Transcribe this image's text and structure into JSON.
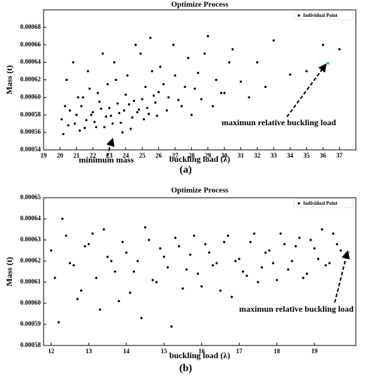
{
  "chart_data": [
    {
      "type": "scatter",
      "title": "Optimize Process",
      "x_label": "buckling load (λ)",
      "y_label": "Mass (t)",
      "caption": "(a)",
      "annotations": [
        "maximun relative buckling load",
        "minimum mass"
      ],
      "xlim": [
        19,
        38
      ],
      "xticks": [
        19,
        20,
        21,
        22,
        23,
        24,
        25,
        26,
        27,
        28,
        29,
        30,
        31,
        32,
        33,
        34,
        35,
        36,
        37
      ],
      "ylim": [
        0.00054,
        0.0007
      ],
      "yticks": [
        0.00054,
        0.00056,
        0.00058,
        {
          "value": 0.0006,
          "label": "0.00060"
        },
        0.00062,
        0.00064,
        0.00066,
        0.00068
      ],
      "legend": "top-right",
      "series": [
        {
          "name": "Individual Point",
          "color": "#000000",
          "x": [
            20.1,
            20.3,
            20.5,
            20.8,
            21.0,
            21.2,
            21.4,
            21.6,
            21.8,
            22.0,
            22.2,
            22.4,
            22.6,
            22.8,
            23.0,
            23.2,
            23.4,
            23.6,
            23.8,
            24.0,
            24.2,
            24.4,
            24.6,
            24.8,
            25.0,
            25.2,
            25.4,
            25.6,
            25.8,
            26.0,
            26.3,
            26.6,
            27.0,
            27.4,
            27.8,
            28.2,
            28.6,
            29.0,
            29.5,
            30.0,
            30.5,
            31.0,
            31.5,
            32.0,
            32.5,
            33.0,
            34.0,
            35.0,
            36.0,
            37.0,
            20.2,
            20.4,
            20.6,
            20.9,
            21.1,
            21.3,
            21.5,
            21.7,
            21.9,
            22.1,
            22.3,
            22.5,
            22.7,
            22.9,
            23.1,
            23.3,
            23.5,
            23.7,
            23.9,
            24.1,
            24.3,
            24.5,
            24.7,
            24.9,
            25.1,
            25.3,
            25.5,
            25.7,
            25.9,
            26.1,
            26.5,
            26.9,
            27.2,
            27.6,
            28.0,
            28.4,
            28.8,
            29.3,
            29.8,
            30.3
          ],
          "y": [
            0.000575,
            0.00059,
            0.000568,
            0.00064,
            0.00058,
            0.000562,
            0.0006,
            0.000574,
            0.00061,
            0.000583,
            0.000566,
            0.000595,
            0.00065,
            0.000578,
            0.000588,
            0.00057,
            0.00062,
            0.000582,
            0.00056,
            0.000603,
            0.000592,
            0.000577,
            0.00066,
            0.000586,
            0.000598,
            0.000612,
            0.000581,
            0.00063,
            0.000594,
            0.000606,
            0.000615,
            0.0006,
            0.000625,
            0.00059,
            0.000645,
            0.00061,
            0.000598,
            0.00067,
            0.00062,
            0.000605,
            0.000655,
            0.000618,
            0.0006,
            0.00064,
            0.000612,
            0.000665,
            0.000626,
            0.00063,
            0.00066,
            0.000655,
            0.000558,
            0.00062,
            0.000585,
            0.00057,
            0.0006,
            0.00059,
            0.000565,
            0.00063,
            0.00058,
            0.000572,
            0.000605,
            0.000587,
            0.000566,
            0.000615,
            0.000579,
            0.00064,
            0.000593,
            0.000571,
            0.000585,
            0.000625,
            0.000564,
            0.000596,
            0.000583,
            0.00065,
            0.000575,
            0.000588,
            0.000668,
            0.000602,
            0.000579,
            0.000635,
            0.000585,
            0.00066,
            0.000597,
            0.000612,
            0.00058,
            0.000628,
            0.00065,
            0.00059,
            0.000605,
            0.00064
          ]
        }
      ],
      "highlight": {
        "x": 36.3,
        "y": 0.000639,
        "color": "#2ec4b6"
      }
    },
    {
      "type": "scatter",
      "title": "Optimize Process",
      "x_label": "buckling load (λ)",
      "y_label": "Mass (t)",
      "caption": "(b)",
      "annotations": [
        "maximun relative buckling load"
      ],
      "xlim": [
        11.8,
        20.1
      ],
      "xticks": [
        12,
        13,
        14,
        15,
        16,
        17,
        18,
        19
      ],
      "ylim": [
        0.00058,
        0.00065
      ],
      "yticks": [
        0.00058,
        0.00059,
        {
          "value": 0.0006,
          "label": "0.00060"
        },
        0.00061,
        0.00062,
        0.00063,
        0.00064,
        0.00065
      ],
      "legend": "top-right",
      "series": [
        {
          "name": "Individual Point",
          "color": "#000000",
          "x": [
            12.0,
            12.2,
            12.4,
            12.6,
            12.8,
            13.0,
            13.2,
            13.4,
            13.6,
            13.8,
            14.0,
            14.2,
            14.4,
            14.6,
            14.8,
            15.0,
            15.2,
            15.4,
            15.6,
            15.8,
            16.0,
            16.2,
            16.4,
            16.6,
            16.8,
            17.0,
            17.2,
            17.4,
            17.6,
            17.8,
            18.0,
            18.2,
            18.4,
            18.6,
            18.8,
            19.0,
            19.2,
            19.4,
            19.6,
            19.8,
            12.1,
            12.3,
            12.5,
            12.7,
            12.9,
            13.1,
            13.3,
            13.5,
            13.7,
            13.9,
            14.1,
            14.3,
            14.5,
            14.7,
            14.9,
            15.1,
            15.3,
            15.5,
            15.7,
            15.9,
            16.1,
            16.3,
            16.5,
            16.7,
            16.9,
            17.1,
            17.3,
            17.5,
            17.7,
            17.9,
            18.1,
            18.3,
            18.5,
            18.7,
            18.9,
            19.1,
            19.3,
            19.5,
            19.7
          ],
          "y": [
            0.000625,
            0.000591,
            0.000632,
            0.000618,
            0.000606,
            0.000628,
            0.000612,
            0.000635,
            0.00062,
            0.000601,
            0.000624,
            0.000615,
            0.000593,
            0.00063,
            0.00061,
            0.000622,
            0.000589,
            0.000627,
            0.000616,
            0.000632,
            0.000608,
            0.000624,
            0.000619,
            0.000629,
            0.000603,
            0.000621,
            0.000613,
            0.000633,
            0.000617,
            0.000625,
            0.000611,
            0.000628,
            0.00062,
            0.000631,
            0.000614,
            0.000626,
            0.000635,
            0.000619,
            0.000628,
            0.000622,
            0.000612,
            0.00064,
            0.000619,
            0.000602,
            0.000627,
            0.000633,
            0.000597,
            0.000622,
            0.000615,
            0.000629,
            0.000605,
            0.00062,
            0.000636,
            0.000611,
            0.000626,
            0.000617,
            0.000631,
            0.000607,
            0.000623,
            0.000614,
            0.000628,
            0.000618,
            0.000606,
            0.000632,
            0.00062,
            0.000615,
            0.000629,
            0.00061,
            0.000624,
            0.000619,
            0.000633,
            0.000616,
            0.000627,
            0.000612,
            0.00063,
            0.000621,
            0.000618,
            0.000633,
            0.000625
          ]
        }
      ],
      "highlight": {
        "x": 19.9,
        "y": 0.000624,
        "color": "#2ec4b6"
      }
    }
  ]
}
